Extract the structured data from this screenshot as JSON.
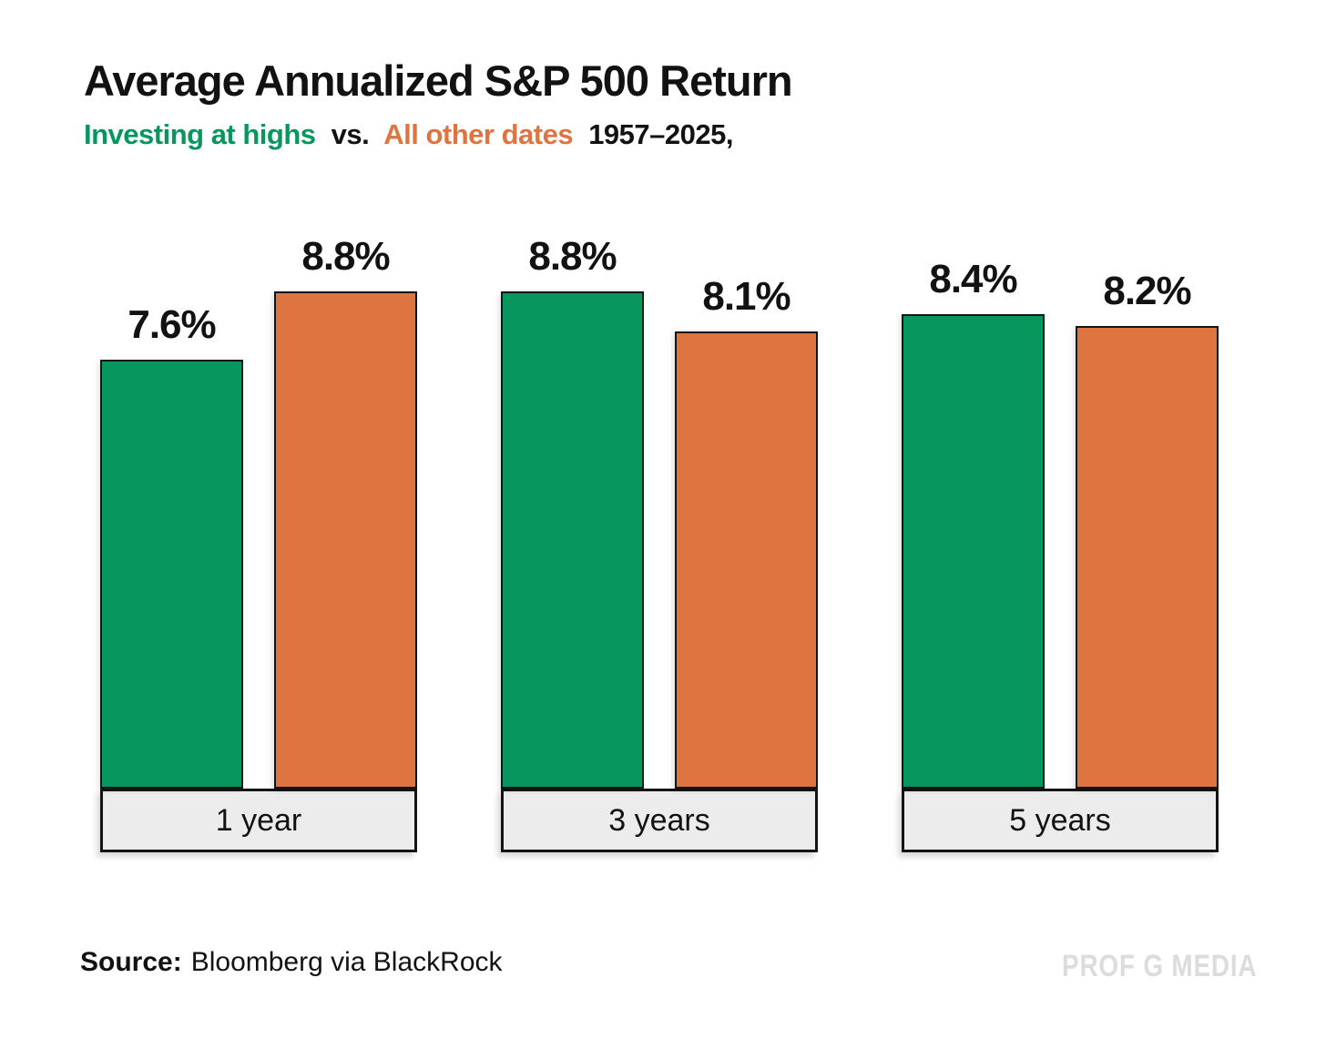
{
  "title": "Average Annualized S&P 500 Return",
  "subtitle": {
    "green_text": "Investing at highs",
    "vs": "vs.",
    "orange_text": "All other dates",
    "period": "1957–2025,"
  },
  "colors": {
    "green": "#08965F",
    "orange": "#DE7440",
    "title_text": "#121212",
    "category_box_bg": "#ECECEC",
    "border": "#141414",
    "watermark": "#DCDCDC"
  },
  "chart_data": {
    "type": "bar",
    "categories": [
      "1 year",
      "3 years",
      "5 years"
    ],
    "series": [
      {
        "name": "Investing at highs",
        "color": "#08965F",
        "values": [
          7.6,
          8.8,
          8.4
        ],
        "labels": [
          "7.6%",
          "8.8%",
          "8.4%"
        ]
      },
      {
        "name": "All other dates",
        "color": "#DE7440",
        "values": [
          8.8,
          8.1,
          8.2
        ],
        "labels": [
          "8.8%",
          "8.1%",
          "8.2%"
        ]
      }
    ],
    "title": "Average Annualized S&P 500 Return",
    "xlabel": "",
    "ylabel": "",
    "ylim": [
      0,
      9.8
    ],
    "grid": false,
    "legend_position": "inline-in-subtitle",
    "period": "1957–2025"
  },
  "source": {
    "prefix": "Source:",
    "text": "Bloomberg via BlackRock"
  },
  "watermark": "PROF G MEDIA"
}
